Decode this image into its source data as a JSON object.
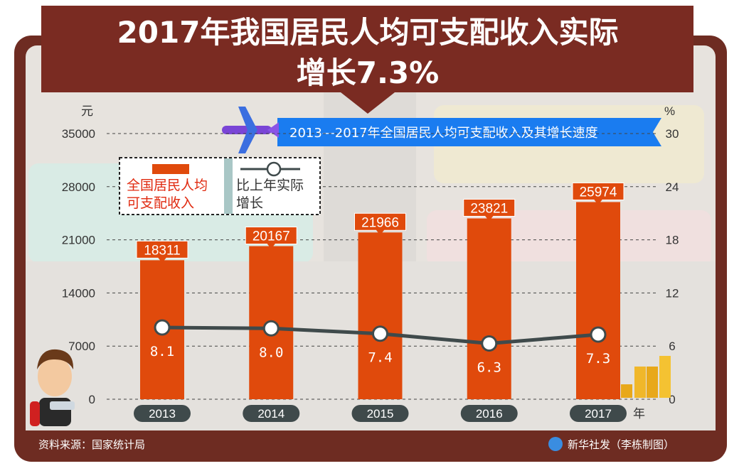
{
  "title_line1": "2017年我国居民人均可支配收入实际",
  "title_line2": "增长7.3%",
  "source": "资料来源：国家统计局",
  "credit": "新华社发（李栋制图）",
  "colors": {
    "bar": "#e04a0c",
    "line": "#3f4a4b",
    "banner": "#7a2b22",
    "subtitle": "#1a7cf0"
  },
  "chart_data": {
    "type": "bar",
    "title": "2013—2017年全国居民人均可支配收入及其增长速度",
    "categories": [
      "2013",
      "2014",
      "2015",
      "2016",
      "2017"
    ],
    "xlabel": "年",
    "ylabel": "元",
    "y2label": "%",
    "ylim": [
      0,
      35000
    ],
    "y2lim": [
      0,
      30
    ],
    "yticks": [
      "0",
      "7000",
      "14000",
      "21000",
      "28000",
      "35000"
    ],
    "y2ticks": [
      "0",
      "6",
      "12",
      "18",
      "24",
      "30"
    ],
    "grid": true,
    "legend": "top-left",
    "series": [
      {
        "name": "全国居民人均可支配收入",
        "type": "bar",
        "values": [
          18311,
          20167,
          21966,
          23821,
          25974
        ],
        "labels": [
          "18311",
          "20167",
          "21966",
          "23821",
          "25974"
        ]
      },
      {
        "name": "比上年实际增长",
        "type": "line",
        "axis": "right",
        "values": [
          8.1,
          8.0,
          7.4,
          6.3,
          7.3
        ],
        "labels": [
          "8.1",
          "8.0",
          "7.4",
          "6.3",
          "7.3"
        ]
      }
    ],
    "legend_labels": {
      "bar_line1": "全国居民人均",
      "bar_line2": "可支配收入",
      "line_line1": "比上年实际",
      "line_line2": "增长"
    }
  }
}
